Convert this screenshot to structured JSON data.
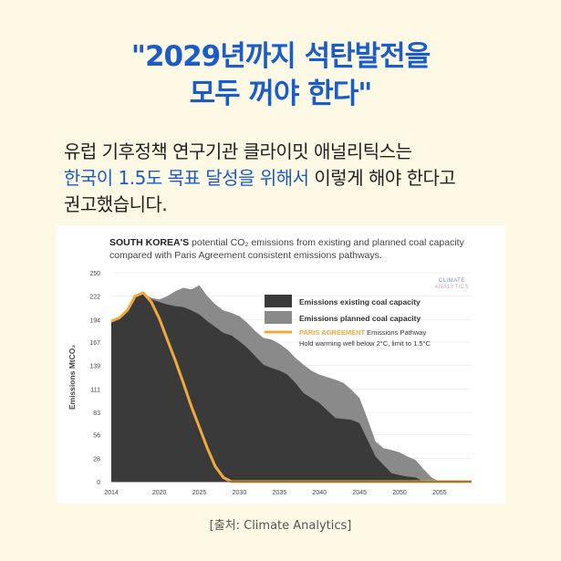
{
  "header": {
    "title_line1": "\"2029년까지 석탄발전을",
    "title_line2": "모두 꺼야 한다\""
  },
  "intro": {
    "line1": "유럽 기후정책 연구기관 클라이밋 애널리틱스는",
    "line2_highlight": "한국이 1.5도 목표 달성을 위해서",
    "line2_rest": " 이렇게 해야 한다고",
    "line3": "권고했습니다."
  },
  "chart_header": {
    "bold": "SOUTH KOREA'S",
    "rest": " potential CO₂ emissions from existing and planned coal capacity compared with Paris Agreement consistent emissions pathways."
  },
  "logo": {
    "line1": "CLIMATE",
    "line2": "ANALYTICS"
  },
  "colors": {
    "existing": "#3a3a3a",
    "planned": "#8a8a8a",
    "paris": "#f2a93b",
    "accent": "#1a5cc8"
  },
  "chart_data": {
    "type": "area",
    "ylabel": "Emissions MtCO₂",
    "xlim": [
      2014,
      2059
    ],
    "ylim": [
      0,
      250
    ],
    "x_ticks": [
      2014,
      2020,
      2025,
      2030,
      2035,
      2040,
      2045,
      2050,
      2055
    ],
    "y_ticks": [
      0,
      28,
      56,
      83,
      111,
      139,
      167,
      194,
      222,
      250
    ],
    "legend": {
      "existing": "Emissions existing coal capacity",
      "planned": "Emissions planned coal capacity",
      "paris_bold": "PARIS AGREEMENT",
      "paris_rest": " Emissions Pathway",
      "paris_note": "Hold warming well below 2°C, limit to 1.5°C"
    },
    "series": [
      {
        "name": "Emissions existing coal capacity",
        "points": [
          [
            2014,
            193
          ],
          [
            2015,
            196
          ],
          [
            2016,
            205
          ],
          [
            2017,
            222
          ],
          [
            2018,
            225
          ],
          [
            2019,
            218
          ],
          [
            2020,
            215
          ],
          [
            2021,
            212
          ],
          [
            2022,
            210
          ],
          [
            2023,
            209
          ],
          [
            2024,
            205
          ],
          [
            2025,
            200
          ],
          [
            2026,
            192
          ],
          [
            2027,
            185
          ],
          [
            2028,
            178
          ],
          [
            2029,
            175
          ],
          [
            2030,
            168
          ],
          [
            2031,
            160
          ],
          [
            2032,
            150
          ],
          [
            2033,
            140
          ],
          [
            2034,
            136
          ],
          [
            2035,
            133
          ],
          [
            2036,
            128
          ],
          [
            2037,
            118
          ],
          [
            2038,
            106
          ],
          [
            2039,
            100
          ],
          [
            2040,
            94
          ],
          [
            2041,
            85
          ],
          [
            2042,
            76
          ],
          [
            2043,
            75
          ],
          [
            2044,
            74
          ],
          [
            2045,
            70
          ],
          [
            2046,
            50
          ],
          [
            2047,
            30
          ],
          [
            2048,
            20
          ],
          [
            2049,
            10
          ],
          [
            2050,
            8
          ],
          [
            2051,
            6
          ],
          [
            2052,
            5
          ],
          [
            2053,
            0
          ]
        ]
      },
      {
        "name": "Emissions planned coal capacity",
        "points": [
          [
            2014,
            193
          ],
          [
            2015,
            196
          ],
          [
            2016,
            205
          ],
          [
            2017,
            222
          ],
          [
            2018,
            225
          ],
          [
            2019,
            220
          ],
          [
            2020,
            218
          ],
          [
            2021,
            222
          ],
          [
            2022,
            228
          ],
          [
            2023,
            232
          ],
          [
            2024,
            230
          ],
          [
            2025,
            235
          ],
          [
            2026,
            222
          ],
          [
            2027,
            212
          ],
          [
            2028,
            205
          ],
          [
            2029,
            202
          ],
          [
            2030,
            198
          ],
          [
            2031,
            190
          ],
          [
            2032,
            180
          ],
          [
            2033,
            172
          ],
          [
            2034,
            170
          ],
          [
            2035,
            165
          ],
          [
            2036,
            158
          ],
          [
            2037,
            148
          ],
          [
            2038,
            140
          ],
          [
            2039,
            133
          ],
          [
            2040,
            128
          ],
          [
            2041,
            125
          ],
          [
            2042,
            122
          ],
          [
            2043,
            118
          ],
          [
            2044,
            110
          ],
          [
            2045,
            100
          ],
          [
            2046,
            75
          ],
          [
            2047,
            48
          ],
          [
            2048,
            40
          ],
          [
            2049,
            38
          ],
          [
            2050,
            35
          ],
          [
            2051,
            30
          ],
          [
            2052,
            26
          ],
          [
            2053,
            15
          ],
          [
            2054,
            5
          ],
          [
            2055,
            0
          ]
        ]
      },
      {
        "name": "PARIS AGREEMENT Emissions Pathway",
        "points": [
          [
            2014,
            192
          ],
          [
            2015,
            196
          ],
          [
            2016,
            205
          ],
          [
            2017,
            222
          ],
          [
            2018,
            226
          ],
          [
            2019,
            215
          ],
          [
            2020,
            195
          ],
          [
            2021,
            170
          ],
          [
            2022,
            145
          ],
          [
            2023,
            118
          ],
          [
            2024,
            90
          ],
          [
            2025,
            65
          ],
          [
            2026,
            40
          ],
          [
            2027,
            18
          ],
          [
            2028,
            5
          ],
          [
            2029,
            0
          ],
          [
            2059,
            0
          ]
        ]
      }
    ]
  },
  "source": "[출처: Climate Analytics]"
}
